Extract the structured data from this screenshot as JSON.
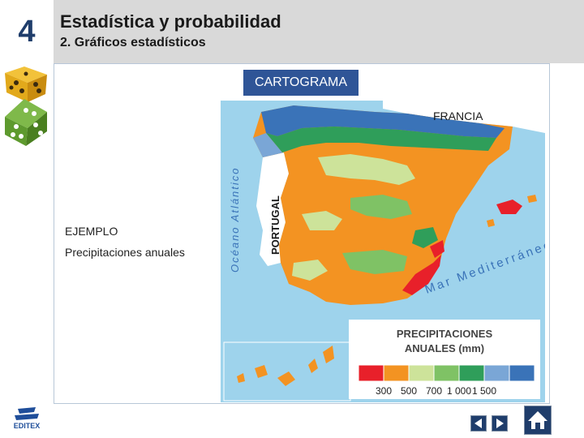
{
  "header": {
    "chapter_number": "4",
    "title": "Estadística y probabilidad",
    "subtitle": "2. Gráficos estadísticos"
  },
  "graph_type_label": "CARTOGRAMA",
  "example": {
    "label": "EJEMPLO",
    "description": "Precipitaciones anuales"
  },
  "map": {
    "labels": {
      "france": "FRANCIA",
      "portugal": "PORTUGAL",
      "atlantic": "Océano Atlántico",
      "mediterranean": "Mar Mediterráneo"
    },
    "legend": {
      "title_line1": "PRECIPITACIONES",
      "title_line2": "ANUALES (mm)",
      "classes": [
        {
          "color": "#e8202a"
        },
        {
          "color": "#f39322"
        },
        {
          "color": "#cde39a"
        },
        {
          "color": "#7fc265"
        },
        {
          "color": "#2f9e5a"
        },
        {
          "color": "#7aa6d6"
        },
        {
          "color": "#3a73b8"
        }
      ],
      "ticks": [
        "300",
        "500",
        "700",
        "1 000",
        "1 500"
      ]
    },
    "colors": {
      "sea": "#9ed3ec",
      "foreign_land": "#ffffff"
    }
  },
  "publisher_logo": "EDITEX",
  "navigation": {
    "prev_icon": "triangle-left-icon",
    "next_icon": "triangle-right-icon",
    "home_icon": "house-icon"
  }
}
